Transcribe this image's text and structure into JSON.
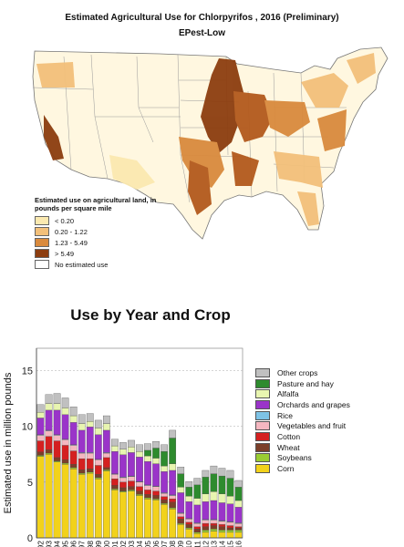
{
  "map": {
    "title": "Estimated Agricultural Use for Chlorpyrifos , 2016 (Preliminary)",
    "subtitle": "EPest-Low",
    "legend": {
      "title": "Estimated use on agricultural land, in pounds per square mile",
      "items": [
        {
          "label": "< 0.20",
          "color": "#fbe9b0"
        },
        {
          "label": "0.20 - 1.22",
          "color": "#f3c07a"
        },
        {
          "label": "1.23 - 5.49",
          "color": "#d98a3d"
        },
        {
          "label": "> 5.49",
          "color": "#8c3d0f"
        },
        {
          "label": "No estimated use",
          "color": "#ffffff"
        }
      ]
    }
  },
  "chart_data": {
    "type": "bar",
    "title": "Use by Year and Crop",
    "xlabel": "",
    "ylabel": "Estimated use in million pounds",
    "ylim": [
      0,
      17
    ],
    "yticks": [
      0,
      5,
      10,
      15
    ],
    "grid": true,
    "legend_position": "right",
    "categories": [
      "1992",
      "1993",
      "1994",
      "1995",
      "1996",
      "1997",
      "1998",
      "1999",
      "2000",
      "2001",
      "2002",
      "2003",
      "2004",
      "2005",
      "2006",
      "2007",
      "2008",
      "2009",
      "2010",
      "2011",
      "2012",
      "2013",
      "2014",
      "2015",
      "2016"
    ],
    "series": [
      {
        "name": "Corn",
        "color": "#f2d21b",
        "values": [
          7.3,
          7.5,
          6.8,
          6.6,
          6.2,
          5.7,
          5.8,
          5.3,
          6.0,
          4.3,
          4.1,
          4.2,
          3.8,
          3.5,
          3.4,
          3.0,
          2.6,
          1.2,
          0.8,
          0.4,
          0.5,
          0.6,
          0.5,
          0.5,
          0.5
        ]
      },
      {
        "name": "Soybeans",
        "color": "#9acd32",
        "values": [
          0.1,
          0.1,
          0.1,
          0.1,
          0.1,
          0.1,
          0.1,
          0.1,
          0.1,
          0.1,
          0.1,
          0.1,
          0.1,
          0.1,
          0.1,
          0.1,
          0.1,
          0.1,
          0.1,
          0.1,
          0.2,
          0.2,
          0.2,
          0.2,
          0.2
        ]
      },
      {
        "name": "Wheat",
        "color": "#7b3f2a",
        "values": [
          0.3,
          0.3,
          0.3,
          0.3,
          0.3,
          0.3,
          0.3,
          0.3,
          0.2,
          0.3,
          0.3,
          0.3,
          0.3,
          0.3,
          0.3,
          0.3,
          0.5,
          0.4,
          0.3,
          0.3,
          0.3,
          0.3,
          0.3,
          0.2,
          0.2
        ]
      },
      {
        "name": "Cotton",
        "color": "#d42020",
        "values": [
          1.0,
          1.2,
          1.5,
          1.3,
          1.2,
          1.0,
          0.9,
          0.8,
          0.9,
          0.6,
          0.5,
          0.5,
          0.4,
          0.4,
          0.4,
          0.3,
          0.3,
          0.2,
          0.2,
          0.2,
          0.3,
          0.2,
          0.2,
          0.2,
          0.1
        ]
      },
      {
        "name": "Vegetables and fruit",
        "color": "#f5b7c0",
        "values": [
          0.5,
          0.5,
          0.5,
          0.5,
          0.5,
          0.5,
          0.5,
          0.5,
          0.4,
          0.4,
          0.4,
          0.4,
          0.4,
          0.4,
          0.4,
          0.3,
          0.3,
          0.3,
          0.3,
          0.3,
          0.3,
          0.3,
          0.3,
          0.3,
          0.3
        ]
      },
      {
        "name": "Rice",
        "color": "#7ec3e6",
        "values": [
          0.05,
          0.05,
          0.05,
          0.05,
          0.05,
          0.05,
          0.05,
          0.05,
          0.05,
          0.05,
          0.05,
          0.05,
          0.05,
          0.05,
          0.05,
          0.05,
          0.05,
          0.05,
          0.05,
          0.05,
          0.05,
          0.05,
          0.05,
          0.05,
          0.05
        ]
      },
      {
        "name": "Orchards and grapes",
        "color": "#9a34c9",
        "values": [
          1.5,
          1.8,
          2.2,
          2.2,
          2.0,
          2.0,
          2.3,
          2.2,
          2.0,
          2.0,
          2.0,
          2.1,
          2.2,
          2.1,
          2.0,
          1.9,
          2.2,
          1.8,
          1.5,
          1.6,
          1.6,
          1.7,
          1.6,
          1.6,
          1.4
        ]
      },
      {
        "name": "Alfalfa",
        "color": "#e8f5b0",
        "values": [
          0.5,
          0.6,
          0.6,
          0.6,
          0.6,
          0.6,
          0.5,
          0.6,
          0.6,
          0.5,
          0.5,
          0.5,
          0.5,
          0.5,
          0.5,
          0.5,
          0.6,
          0.5,
          0.5,
          0.6,
          0.7,
          0.8,
          0.8,
          0.7,
          0.6
        ]
      },
      {
        "name": "Pasture and hay",
        "color": "#2e8b2e",
        "values": [
          0.0,
          0.0,
          0.0,
          0.0,
          0.0,
          0.0,
          0.0,
          0.0,
          0.0,
          0.0,
          0.0,
          0.0,
          0.0,
          0.5,
          0.9,
          1.3,
          2.3,
          1.2,
          0.8,
          1.2,
          1.5,
          1.6,
          1.6,
          1.6,
          1.2
        ]
      },
      {
        "name": "Other crops",
        "color": "#c0c0c0",
        "values": [
          0.7,
          0.8,
          0.9,
          0.9,
          0.8,
          0.8,
          0.7,
          0.7,
          0.7,
          0.6,
          0.6,
          0.6,
          0.6,
          0.6,
          0.6,
          0.6,
          0.7,
          0.6,
          0.5,
          0.6,
          0.6,
          0.7,
          0.7,
          0.7,
          0.6
        ]
      }
    ]
  }
}
